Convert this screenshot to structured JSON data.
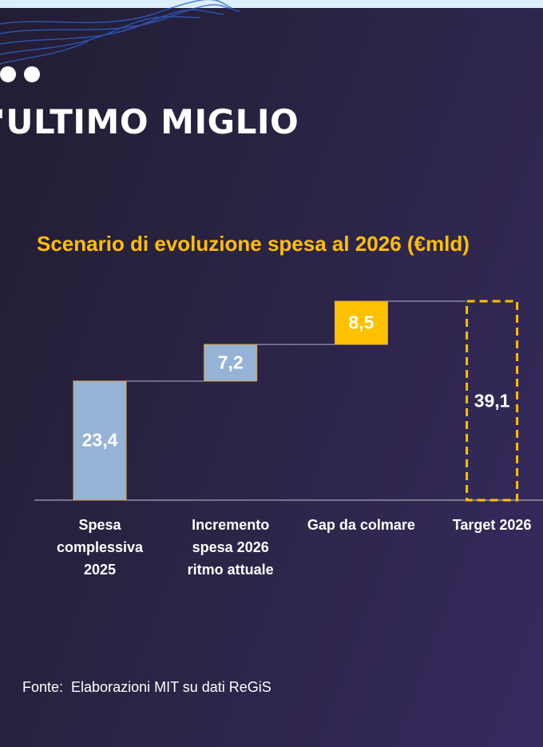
{
  "slide_title": "'ULTIMO MIGLIO",
  "source": "Fonte:  Elaborazioni MIT su dati ReGiS",
  "chart_data": {
    "type": "waterfall",
    "title": "Scenario di evoluzione spesa al 2026 (€mld)",
    "categories": [
      "Spesa\ncomplessiva\n2025",
      "Incremento\nspesa 2026\nritmo attuale",
      "Gap da colmare",
      "Target 2026"
    ],
    "values": [
      23.4,
      7.2,
      8.5,
      39.1
    ],
    "value_labels": [
      "23,4",
      "7,2",
      "8,5",
      "39,1"
    ],
    "measures": [
      "absolute",
      "relative",
      "relative",
      "total"
    ],
    "colors": [
      "#95b3d7",
      "#95b3d7",
      "#ffc000",
      "none"
    ],
    "total_outline": "#ffc000"
  }
}
